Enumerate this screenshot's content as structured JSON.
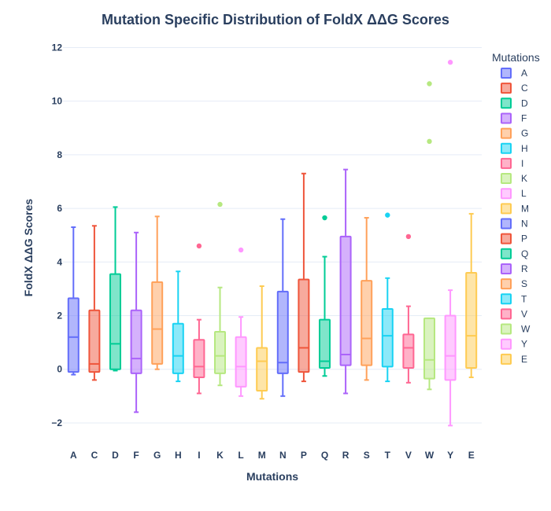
{
  "chart_data": {
    "type": "box",
    "title": "Mutation Specific Distribution of FoldX ΔΔG Scores",
    "xlabel": "Mutations",
    "ylabel": "FoldX ΔΔG Scores",
    "ylim": [
      -2.5,
      12.6
    ],
    "yticks": [
      -2,
      0,
      2,
      4,
      6,
      8,
      10,
      12
    ],
    "ytick_labels": [
      "−2",
      "0",
      "2",
      "4",
      "6",
      "8",
      "10",
      "12"
    ],
    "grid": true,
    "legend": {
      "title": "Mutations",
      "position": "right"
    },
    "categories": [
      "A",
      "C",
      "D",
      "F",
      "G",
      "H",
      "I",
      "K",
      "L",
      "M",
      "N",
      "P",
      "Q",
      "R",
      "S",
      "T",
      "V",
      "W",
      "Y",
      "E"
    ],
    "series": [
      {
        "name": "A",
        "color": "#636efa",
        "min": -0.2,
        "q1": -0.1,
        "median": 1.2,
        "q3": 2.65,
        "max": 5.3,
        "outliers": []
      },
      {
        "name": "C",
        "color": "#ef553b",
        "min": -0.4,
        "q1": -0.1,
        "median": 0.2,
        "q3": 2.2,
        "max": 5.35,
        "outliers": []
      },
      {
        "name": "D",
        "color": "#00cc96",
        "min": -0.05,
        "q1": 0.0,
        "median": 0.95,
        "q3": 3.55,
        "max": 6.05,
        "outliers": []
      },
      {
        "name": "F",
        "color": "#ab63fa",
        "min": -1.6,
        "q1": -0.15,
        "median": 0.4,
        "q3": 2.2,
        "max": 5.1,
        "outliers": []
      },
      {
        "name": "G",
        "color": "#ffa15a",
        "min": 0.0,
        "q1": 0.2,
        "median": 1.5,
        "q3": 3.25,
        "max": 5.7,
        "outliers": []
      },
      {
        "name": "H",
        "color": "#19d3f3",
        "min": -0.45,
        "q1": -0.15,
        "median": 0.5,
        "q3": 1.7,
        "max": 3.65,
        "outliers": []
      },
      {
        "name": "I",
        "color": "#ff6692",
        "min": -0.9,
        "q1": -0.3,
        "median": 0.1,
        "q3": 1.1,
        "max": 1.85,
        "outliers": [
          4.6
        ]
      },
      {
        "name": "K",
        "color": "#b6e880",
        "min": -0.6,
        "q1": -0.15,
        "median": 0.5,
        "q3": 1.4,
        "max": 3.05,
        "outliers": [
          6.15
        ]
      },
      {
        "name": "L",
        "color": "#ff97ff",
        "min": -1.0,
        "q1": -0.65,
        "median": 0.1,
        "q3": 1.2,
        "max": 1.95,
        "outliers": [
          4.45
        ]
      },
      {
        "name": "M",
        "color": "#fecb52",
        "min": -1.1,
        "q1": -0.8,
        "median": 0.3,
        "q3": 0.8,
        "max": 3.1,
        "outliers": []
      },
      {
        "name": "N",
        "color": "#636efa",
        "min": -1.0,
        "q1": -0.15,
        "median": 0.25,
        "q3": 2.9,
        "max": 5.6,
        "outliers": []
      },
      {
        "name": "P",
        "color": "#ef553b",
        "min": -0.45,
        "q1": -0.1,
        "median": 0.8,
        "q3": 3.35,
        "max": 7.3,
        "outliers": []
      },
      {
        "name": "Q",
        "color": "#00cc96",
        "min": -0.25,
        "q1": 0.05,
        "median": 0.3,
        "q3": 1.85,
        "max": 4.2,
        "outliers": [
          5.65
        ]
      },
      {
        "name": "R",
        "color": "#ab63fa",
        "min": -0.9,
        "q1": 0.15,
        "median": 0.55,
        "q3": 4.95,
        "max": 7.45,
        "outliers": []
      },
      {
        "name": "S",
        "color": "#ffa15a",
        "min": -0.4,
        "q1": 0.15,
        "median": 1.15,
        "q3": 3.3,
        "max": 5.65,
        "outliers": []
      },
      {
        "name": "T",
        "color": "#19d3f3",
        "min": -0.45,
        "q1": 0.1,
        "median": 1.25,
        "q3": 2.25,
        "max": 3.4,
        "outliers": [
          5.75
        ]
      },
      {
        "name": "V",
        "color": "#ff6692",
        "min": -0.5,
        "q1": 0.05,
        "median": 0.8,
        "q3": 1.3,
        "max": 2.35,
        "outliers": [
          4.95
        ]
      },
      {
        "name": "W",
        "color": "#b6e880",
        "min": -0.75,
        "q1": -0.35,
        "median": 0.35,
        "q3": 1.9,
        "max": 1.9,
        "outliers": [
          8.5,
          10.65
        ]
      },
      {
        "name": "Y",
        "color": "#ff97ff",
        "min": -2.1,
        "q1": -0.4,
        "median": 0.5,
        "q3": 2.0,
        "max": 2.95,
        "outliers": [
          11.45
        ]
      },
      {
        "name": "E",
        "color": "#fecb52",
        "min": -0.3,
        "q1": 0.05,
        "median": 1.25,
        "q3": 3.6,
        "max": 5.8,
        "outliers": []
      }
    ]
  }
}
